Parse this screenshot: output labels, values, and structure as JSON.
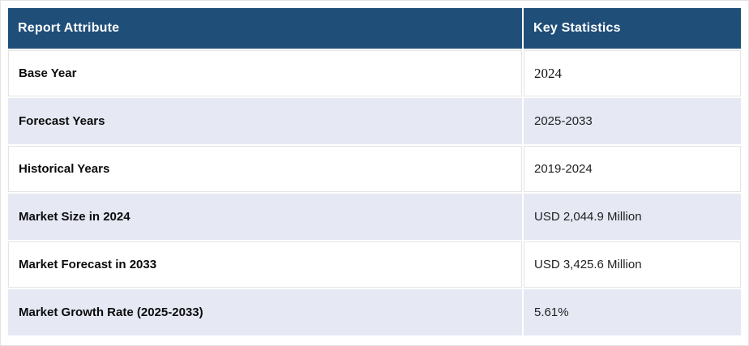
{
  "table": {
    "title": "Report Attribute vs Key Statistics summary table",
    "headers": [
      "Report Attribute",
      "Key Statistics"
    ],
    "rows": [
      {
        "attribute": "Base Year",
        "value": "2024"
      },
      {
        "attribute": "Forecast Years",
        "value": "2025-2033"
      },
      {
        "attribute": "Historical Years",
        "value": "2019-2024"
      },
      {
        "attribute": "Market Size in 2024",
        "value": "USD 2,044.9 Million"
      },
      {
        "attribute": "Market Forecast in 2033",
        "value": "USD 3,425.6 Million"
      },
      {
        "attribute": "Market Growth Rate (2025-2033)",
        "value": "5.61%"
      }
    ],
    "colors": {
      "header_bg": "#1f4e79",
      "header_text": "#ffffff",
      "row_bg": "#ffffff",
      "alt_row_bg": "#e6e8f4",
      "cell_border": "#e4e4e6"
    }
  },
  "chart_data": {
    "type": "table",
    "title": "Report Attribute / Key Statistics",
    "columns": [
      "Report Attribute",
      "Key Statistics"
    ],
    "rows": [
      [
        "Base Year",
        "2024"
      ],
      [
        "Forecast Years",
        "2025-2033"
      ],
      [
        "Historical Years",
        "2019-2024"
      ],
      [
        "Market Size in 2024",
        "USD 2,044.9 Million"
      ],
      [
        "Market Forecast in 2033",
        "USD 3,425.6 Million"
      ],
      [
        "Market Growth Rate (2025-2033)",
        "5.61%"
      ]
    ]
  }
}
